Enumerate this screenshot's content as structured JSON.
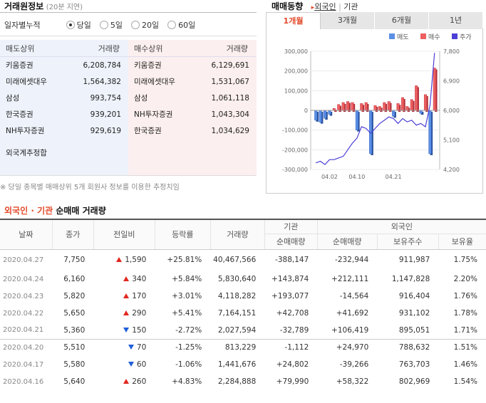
{
  "header": {
    "title": "거래원정보",
    "delay": "(20분 지연)"
  },
  "period": {
    "label": "일자별누적",
    "options": [
      {
        "label": "당일",
        "selected": true
      },
      {
        "label": "5일",
        "selected": false
      },
      {
        "label": "20일",
        "selected": false
      },
      {
        "label": "60일",
        "selected": false
      }
    ]
  },
  "sell": {
    "header_name": "매도상위",
    "header_vol": "거래량",
    "rows": [
      {
        "name": "키움증권",
        "vol": "6,208,784"
      },
      {
        "name": "미래에셋대우",
        "vol": "1,564,382"
      },
      {
        "name": "삼성",
        "vol": "993,754"
      },
      {
        "name": "한국증권",
        "vol": "939,201"
      },
      {
        "name": "NH투자증권",
        "vol": "929,619"
      }
    ]
  },
  "buy": {
    "header_name": "매수상위",
    "header_vol": "거래량",
    "rows": [
      {
        "name": "키움증권",
        "vol": "6,129,691"
      },
      {
        "name": "미래에셋대우",
        "vol": "1,531,067"
      },
      {
        "name": "삼성",
        "vol": "1,061,118"
      },
      {
        "name": "NH투자증권",
        "vol": "1,043,304"
      },
      {
        "name": "한국증권",
        "vol": "1,034,629"
      }
    ]
  },
  "foreign_estimate": {
    "label": "외국계추정합"
  },
  "note": "※ 당일 종목별 매매상위 5개 회원사 정보를 이용한 추정치임",
  "trend": {
    "title": "매매동향",
    "links": [
      "외국인",
      "기관"
    ],
    "tabs": [
      {
        "label": "1개월",
        "active": true
      },
      {
        "label": "3개월",
        "active": false
      },
      {
        "label": "6개월",
        "active": false
      },
      {
        "label": "1년",
        "active": false
      }
    ]
  },
  "chart_data": {
    "type": "bar",
    "legend": [
      "매도",
      "매수",
      "주가"
    ],
    "legend_position": "top-right",
    "yleft_ticks": [
      "300,000",
      "200,000",
      "100,000",
      "0",
      "-100,000",
      "-200,000",
      "-300,000"
    ],
    "yright_ticks": [
      "7,800",
      "6,900",
      "6,000",
      "5,100",
      "4,200"
    ],
    "x_ticks": [
      "04.02",
      "04.10",
      "04.21"
    ],
    "ylim": [
      -300000,
      300000
    ],
    "y2lim": [
      4200,
      7800
    ],
    "values": [
      -50000,
      -60000,
      -40000,
      -20000,
      10000,
      30000,
      40000,
      45000,
      40000,
      -100000,
      35000,
      40000,
      -220000,
      25000,
      20000,
      40000,
      45000,
      -30000,
      35000,
      65000,
      20000,
      55000,
      125000,
      -15000,
      80000,
      -220000,
      215000
    ],
    "price": [
      4400,
      4450,
      4350,
      4500,
      4500,
      4550,
      4600,
      4800,
      5000,
      5150,
      5500,
      5450,
      5300,
      5450,
      5600,
      5700,
      5800,
      5750,
      5600,
      5750,
      5650,
      5700,
      5550,
      5600,
      5500,
      6150,
      7750
    ],
    "colors": {
      "sell": "#5b8fe6",
      "buy": "#ee5f5f",
      "price": "#4b3fd6"
    }
  },
  "netbuy": {
    "title_foreign": "외국인",
    "title_dot": "·",
    "title_inst": "기관",
    "title_rest": "순매매 거래량"
  },
  "table": {
    "headers": {
      "date": "날짜",
      "close": "종가",
      "change": "전일비",
      "rate": "등락률",
      "volume": "거래량",
      "inst": "기관",
      "foreign": "외국인",
      "inst_net": "순매매량",
      "foreign_net": "순매매량",
      "holdings": "보유주수",
      "ratio": "보유율"
    },
    "rows": [
      {
        "date": "2020.04.27",
        "close": "7,750",
        "dir": "up",
        "change": "1,590",
        "rate": "+25.81%",
        "volume": "40,467,566",
        "inst": "-388,147",
        "foreign": "-232,944",
        "hold": "911,987",
        "ratio": "1.75%"
      },
      {
        "date": "2020.04.24",
        "close": "6,160",
        "dir": "up",
        "change": "340",
        "rate": "+5.84%",
        "volume": "5,830,640",
        "inst": "+143,874",
        "foreign": "+212,111",
        "hold": "1,147,828",
        "ratio": "2.20%"
      },
      {
        "date": "2020.04.23",
        "close": "5,820",
        "dir": "up",
        "change": "170",
        "rate": "+3.01%",
        "volume": "4,118,282",
        "inst": "+193,077",
        "foreign": "-14,564",
        "hold": "916,404",
        "ratio": "1.76%"
      },
      {
        "date": "2020.04.22",
        "close": "5,650",
        "dir": "up",
        "change": "290",
        "rate": "+5.41%",
        "volume": "7,164,151",
        "inst": "+42,708",
        "foreign": "+41,692",
        "hold": "931,102",
        "ratio": "1.78%"
      },
      {
        "date": "2020.04.21",
        "close": "5,360",
        "dir": "dn",
        "change": "150",
        "rate": "-2.72%",
        "volume": "2,027,594",
        "inst": "-32,789",
        "foreign": "+106,419",
        "hold": "895,051",
        "ratio": "1.71%"
      },
      {
        "date": "2020.04.20",
        "close": "5,510",
        "dir": "dn",
        "change": "70",
        "rate": "-1.25%",
        "volume": "813,229",
        "inst": "-1,112",
        "foreign": "+24,970",
        "hold": "788,632",
        "ratio": "1.51%"
      },
      {
        "date": "2020.04.17",
        "close": "5,580",
        "dir": "dn",
        "change": "60",
        "rate": "-1.06%",
        "volume": "1,441,676",
        "inst": "+24,802",
        "foreign": "-39,266",
        "hold": "763,703",
        "ratio": "1.46%"
      },
      {
        "date": "2020.04.16",
        "close": "5,640",
        "dir": "up",
        "change": "260",
        "rate": "+4.83%",
        "volume": "2,284,888",
        "inst": "+79,990",
        "foreign": "+58,322",
        "hold": "802,969",
        "ratio": "1.54%"
      }
    ]
  }
}
